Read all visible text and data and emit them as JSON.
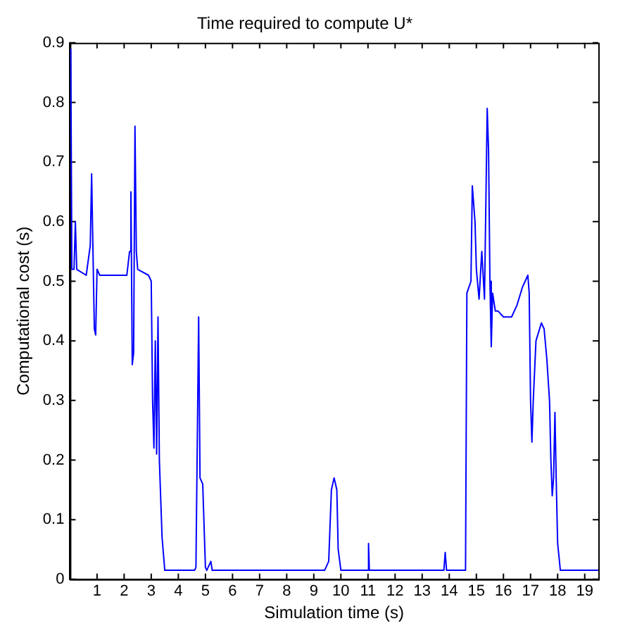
{
  "chart_data": {
    "type": "line",
    "title": "Time required to compute U*",
    "xlabel": "Simulation time (s)",
    "ylabel": "Computational cost (s)",
    "xlim": [
      0,
      19.5
    ],
    "xticks": [
      1,
      2,
      3,
      4,
      5,
      6,
      7,
      8,
      9,
      10,
      11,
      12,
      13,
      14,
      15,
      16,
      17,
      18,
      19
    ],
    "ylim": [
      0,
      0.9
    ],
    "yticks": [
      0,
      0.1,
      0.2,
      0.3,
      0.4,
      0.5,
      0.6,
      0.7,
      0.8,
      0.9
    ],
    "grid": false,
    "legend": false,
    "marker": "none",
    "series": [
      {
        "color": "#0000ff",
        "x": [
          0.03,
          0.07,
          0.15,
          0.2,
          0.25,
          0.6,
          0.75,
          0.8,
          0.85,
          0.9,
          0.95,
          1.0,
          1.1,
          1.5,
          2.1,
          2.2,
          2.25,
          2.3,
          2.35,
          2.4,
          2.45,
          2.5,
          2.9,
          3.0,
          3.05,
          3.1,
          3.15,
          3.2,
          3.25,
          3.3,
          3.4,
          3.5,
          4.6,
          4.65,
          4.75,
          4.8,
          4.9,
          5.0,
          5.05,
          5.2,
          5.25,
          9.4,
          9.55,
          9.65,
          9.75,
          9.85,
          9.9,
          10.0,
          11.0,
          11.02,
          11.05,
          13.8,
          13.85,
          13.9,
          14.6,
          14.65,
          14.8,
          14.85,
          14.95,
          15.0,
          15.1,
          15.2,
          15.3,
          15.4,
          15.45,
          15.5,
          15.55,
          15.6,
          15.7,
          15.8,
          16.0,
          16.3,
          16.5,
          16.7,
          16.8,
          16.9,
          16.95,
          17.0,
          17.05,
          17.1,
          17.2,
          17.4,
          17.5,
          17.6,
          17.7,
          17.75,
          17.8,
          17.85,
          17.9,
          17.95,
          18.0,
          18.1,
          19.5
        ],
        "values": [
          0.89,
          0.52,
          0.52,
          0.6,
          0.52,
          0.51,
          0.56,
          0.68,
          0.55,
          0.42,
          0.41,
          0.52,
          0.51,
          0.51,
          0.51,
          0.55,
          0.65,
          0.36,
          0.38,
          0.76,
          0.55,
          0.52,
          0.51,
          0.5,
          0.3,
          0.22,
          0.4,
          0.21,
          0.44,
          0.2,
          0.07,
          0.015,
          0.015,
          0.02,
          0.44,
          0.17,
          0.16,
          0.02,
          0.015,
          0.03,
          0.015,
          0.015,
          0.03,
          0.15,
          0.17,
          0.15,
          0.05,
          0.015,
          0.015,
          0.06,
          0.015,
          0.015,
          0.045,
          0.015,
          0.015,
          0.48,
          0.5,
          0.66,
          0.6,
          0.52,
          0.47,
          0.55,
          0.47,
          0.79,
          0.72,
          0.5,
          0.39,
          0.48,
          0.45,
          0.45,
          0.44,
          0.44,
          0.46,
          0.49,
          0.5,
          0.51,
          0.48,
          0.3,
          0.23,
          0.3,
          0.4,
          0.43,
          0.42,
          0.37,
          0.3,
          0.2,
          0.14,
          0.17,
          0.28,
          0.16,
          0.06,
          0.015,
          0.015
        ]
      }
    ]
  }
}
